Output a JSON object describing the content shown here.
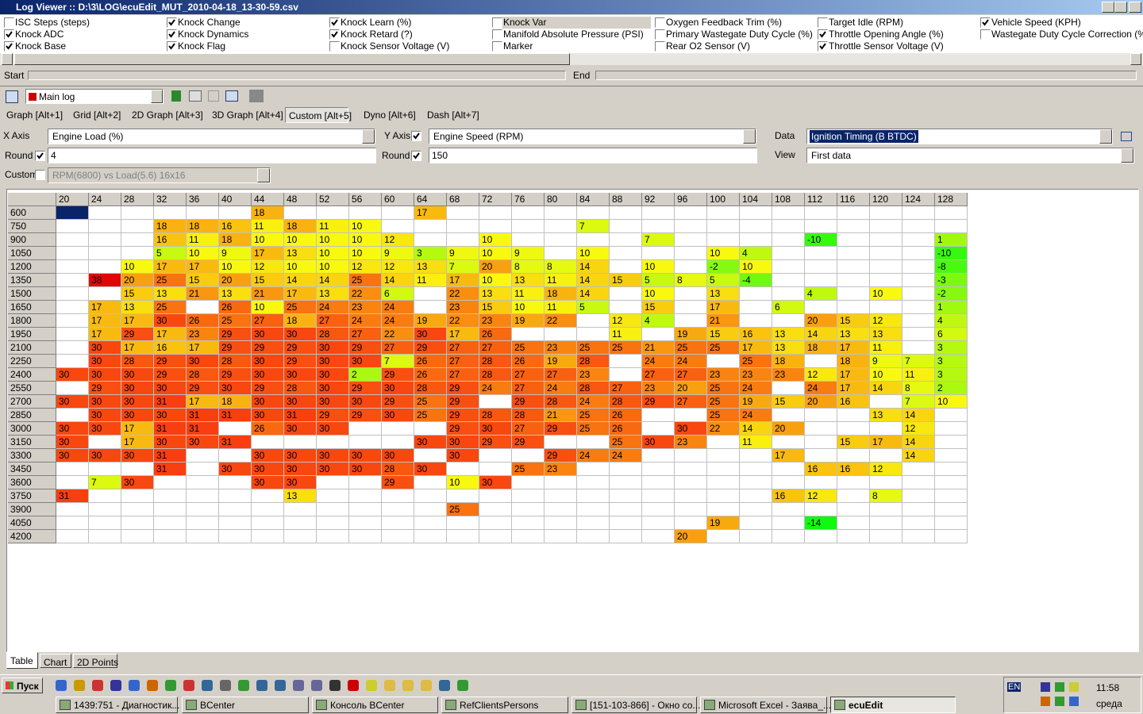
{
  "window": {
    "title": "Log Viewer :: D:\\3\\LOG\\ecuEdit_MUT_2010-04-18_13-30-59.csv"
  },
  "channels": [
    {
      "label": "ISC Steps (steps)",
      "checked": false
    },
    {
      "label": "Knock ADC",
      "checked": true
    },
    {
      "label": "Knock Base",
      "checked": true
    },
    {
      "label": "Knock Change",
      "checked": true
    },
    {
      "label": "Knock Dynamics",
      "checked": true
    },
    {
      "label": "Knock Flag",
      "checked": true
    },
    {
      "label": "Knock Learn (%)",
      "checked": true
    },
    {
      "label": "Knock Retard (?)",
      "checked": true
    },
    {
      "label": "Knock Sensor Voltage (V)",
      "checked": false
    },
    {
      "label": "Knock Var",
      "checked": false
    },
    {
      "label": "Manifold Absolute Pressure (PSI)",
      "checked": false
    },
    {
      "label": "Marker",
      "checked": false
    },
    {
      "label": "Oxygen Feedback Trim (%)",
      "checked": false
    },
    {
      "label": "Primary Wastegate Duty Cycle (%)",
      "checked": false
    },
    {
      "label": "Rear O2 Sensor (V)",
      "checked": false
    },
    {
      "label": "Target Idle (RPM)",
      "checked": false
    },
    {
      "label": "Throttle Opening Angle (%)",
      "checked": true
    },
    {
      "label": "Throttle Sensor Voltage (V)",
      "checked": true
    },
    {
      "label": "Vehicle Speed (KPH)",
      "checked": true
    },
    {
      "label": "Wastegate Duty Cycle Correction (%)",
      "checked": false
    }
  ],
  "range": {
    "start": "Start",
    "end": "End"
  },
  "toolbar": {
    "log": "Main log"
  },
  "tabs": [
    {
      "label": "Graph [Alt+1]",
      "active": false
    },
    {
      "label": "Grid [Alt+2]",
      "active": false
    },
    {
      "label": "2D Graph [Alt+3]",
      "active": false
    },
    {
      "label": "3D Graph [Alt+4]",
      "active": false
    },
    {
      "label": "Custom [Alt+5]",
      "active": true
    },
    {
      "label": "Dyno [Alt+6]",
      "active": false
    },
    {
      "label": "Dash [Alt+7]",
      "active": false
    }
  ],
  "form": {
    "x_label": "X Axis",
    "x_value": "Engine Load (%)",
    "y_label": "Y Axis",
    "y_checked": true,
    "y_value": "Engine Speed (RPM)",
    "data_label": "Data",
    "data_value": "Ignition Timing (B BTDC)",
    "x_round_label": "Round",
    "x_round_checked": true,
    "x_round": "4",
    "y_round_label": "Round",
    "y_round_checked": true,
    "y_round": "150",
    "view_label": "View",
    "view_value": "First data",
    "custom_label": "Custom",
    "custom_checked": false,
    "custom_value": "RPM(6800) vs Load(5.6) 16x16"
  },
  "table": {
    "columns": [
      20,
      24,
      28,
      32,
      36,
      40,
      44,
      48,
      52,
      56,
      60,
      64,
      68,
      72,
      76,
      80,
      84,
      88,
      92,
      96,
      100,
      104,
      108,
      112,
      116,
      120,
      124,
      128
    ],
    "rows": [
      {
        "rpm": 600,
        "cells": [
          null,
          null,
          null,
          null,
          null,
          null,
          18,
          null,
          null,
          null,
          null,
          17,
          null,
          null,
          null,
          null,
          null,
          null,
          null,
          null,
          null,
          null,
          null,
          null,
          null,
          null,
          null,
          null
        ]
      },
      {
        "rpm": 750,
        "cells": [
          null,
          null,
          null,
          18,
          18,
          16,
          11,
          18,
          11,
          10,
          null,
          null,
          null,
          null,
          null,
          null,
          7,
          null,
          null,
          null,
          null,
          null,
          null,
          null,
          null,
          null,
          null,
          null
        ]
      },
      {
        "rpm": 900,
        "cells": [
          null,
          null,
          null,
          16,
          11,
          18,
          10,
          10,
          10,
          10,
          12,
          null,
          null,
          10,
          null,
          null,
          null,
          null,
          7,
          null,
          null,
          null,
          null,
          -10,
          null,
          null,
          null,
          1
        ]
      },
      {
        "rpm": 1050,
        "cells": [
          null,
          null,
          null,
          5,
          10,
          9,
          17,
          13,
          10,
          10,
          9,
          3,
          9,
          10,
          9,
          null,
          10,
          null,
          null,
          null,
          10,
          4,
          null,
          null,
          null,
          null,
          null,
          -10
        ]
      },
      {
        "rpm": 1200,
        "cells": [
          null,
          null,
          10,
          17,
          17,
          10,
          12,
          10,
          10,
          12,
          12,
          13,
          7,
          20,
          8,
          8,
          14,
          null,
          10,
          null,
          -2,
          10,
          null,
          null,
          null,
          null,
          null,
          -8
        ]
      },
      {
        "rpm": 1350,
        "cells": [
          null,
          38,
          20,
          25,
          15,
          20,
          15,
          14,
          14,
          25,
          14,
          11,
          17,
          10,
          13,
          11,
          14,
          15,
          5,
          8,
          5,
          -4,
          null,
          null,
          null,
          null,
          null,
          -3
        ]
      },
      {
        "rpm": 1500,
        "cells": [
          null,
          null,
          15,
          13,
          21,
          13,
          21,
          17,
          13,
          22,
          6,
          null,
          22,
          13,
          11,
          18,
          14,
          null,
          10,
          null,
          13,
          null,
          null,
          4,
          null,
          10,
          null,
          -2
        ]
      },
      {
        "rpm": 1650,
        "cells": [
          null,
          17,
          13,
          25,
          null,
          26,
          10,
          25,
          24,
          23,
          24,
          null,
          23,
          15,
          10,
          11,
          5,
          null,
          15,
          null,
          17,
          null,
          6,
          null,
          null,
          null,
          null,
          1
        ]
      },
      {
        "rpm": 1800,
        "cells": [
          null,
          17,
          17,
          30,
          26,
          25,
          27,
          18,
          27,
          24,
          24,
          19,
          22,
          23,
          19,
          22,
          null,
          12,
          4,
          null,
          21,
          null,
          null,
          20,
          15,
          12,
          null,
          4
        ]
      },
      {
        "rpm": 1950,
        "cells": [
          null,
          17,
          29,
          17,
          23,
          29,
          30,
          30,
          28,
          27,
          22,
          30,
          17,
          26,
          null,
          null,
          null,
          11,
          null,
          19,
          15,
          16,
          13,
          14,
          13,
          13,
          null,
          6
        ]
      },
      {
        "rpm": 2100,
        "cells": [
          null,
          30,
          17,
          16,
          17,
          29,
          29,
          29,
          30,
          29,
          27,
          29,
          27,
          27,
          25,
          23,
          25,
          25,
          21,
          25,
          25,
          17,
          13,
          18,
          17,
          11,
          null,
          3
        ]
      },
      {
        "rpm": 2250,
        "cells": [
          null,
          30,
          28,
          29,
          30,
          28,
          30,
          29,
          30,
          30,
          7,
          26,
          27,
          28,
          26,
          19,
          28,
          null,
          24,
          24,
          null,
          25,
          18,
          null,
          18,
          9,
          7,
          3
        ]
      },
      {
        "rpm": 2400,
        "cells": [
          30,
          30,
          30,
          29,
          28,
          29,
          30,
          30,
          30,
          2,
          29,
          26,
          27,
          28,
          27,
          27,
          23,
          null,
          27,
          27,
          23,
          23,
          23,
          12,
          17,
          10,
          11,
          3
        ]
      },
      {
        "rpm": 2550,
        "cells": [
          null,
          29,
          30,
          30,
          29,
          30,
          29,
          28,
          30,
          29,
          30,
          28,
          29,
          24,
          27,
          24,
          28,
          27,
          23,
          20,
          25,
          24,
          null,
          24,
          17,
          14,
          8,
          2
        ]
      },
      {
        "rpm": 2700,
        "cells": [
          30,
          30,
          30,
          31,
          17,
          18,
          30,
          30,
          30,
          30,
          29,
          25,
          29,
          null,
          29,
          28,
          24,
          28,
          29,
          27,
          25,
          19,
          15,
          20,
          16,
          null,
          7,
          10
        ]
      },
      {
        "rpm": 2850,
        "cells": [
          null,
          30,
          30,
          30,
          31,
          31,
          30,
          31,
          29,
          29,
          30,
          25,
          29,
          28,
          28,
          21,
          25,
          26,
          null,
          null,
          25,
          24,
          null,
          null,
          null,
          13,
          14,
          null
        ]
      },
      {
        "rpm": 3000,
        "cells": [
          30,
          30,
          17,
          31,
          31,
          null,
          26,
          30,
          30,
          null,
          null,
          null,
          29,
          30,
          27,
          29,
          25,
          26,
          null,
          30,
          22,
          14,
          20,
          null,
          null,
          null,
          12,
          null
        ]
      },
      {
        "rpm": 3150,
        "cells": [
          30,
          null,
          17,
          30,
          30,
          31,
          null,
          null,
          null,
          null,
          null,
          30,
          30,
          29,
          29,
          null,
          null,
          25,
          30,
          23,
          null,
          11,
          null,
          null,
          15,
          17,
          14,
          null
        ]
      },
      {
        "rpm": 3300,
        "cells": [
          30,
          30,
          30,
          31,
          null,
          null,
          30,
          30,
          30,
          30,
          30,
          null,
          30,
          null,
          null,
          29,
          24,
          24,
          null,
          null,
          null,
          null,
          17,
          null,
          null,
          null,
          14,
          null
        ]
      },
      {
        "rpm": 3450,
        "cells": [
          null,
          null,
          null,
          31,
          null,
          30,
          30,
          30,
          30,
          30,
          28,
          30,
          null,
          null,
          25,
          23,
          null,
          null,
          null,
          null,
          null,
          null,
          null,
          16,
          16,
          12,
          null,
          null
        ]
      },
      {
        "rpm": 3600,
        "cells": [
          null,
          7,
          30,
          null,
          null,
          null,
          30,
          30,
          null,
          null,
          29,
          null,
          10,
          30,
          null,
          null,
          null,
          null,
          null,
          null,
          null,
          null,
          null,
          null,
          null,
          null,
          null,
          null
        ]
      },
      {
        "rpm": 3750,
        "cells": [
          31,
          null,
          null,
          null,
          null,
          null,
          null,
          13,
          null,
          null,
          null,
          null,
          null,
          null,
          null,
          null,
          null,
          null,
          null,
          null,
          null,
          null,
          16,
          12,
          null,
          8,
          null,
          null
        ]
      },
      {
        "rpm": 3900,
        "cells": [
          null,
          null,
          null,
          null,
          null,
          null,
          null,
          null,
          null,
          null,
          null,
          null,
          25,
          null,
          null,
          null,
          null,
          null,
          null,
          null,
          null,
          null,
          null,
          null,
          null,
          null,
          null,
          null
        ]
      },
      {
        "rpm": 4050,
        "cells": [
          null,
          null,
          null,
          null,
          null,
          null,
          null,
          null,
          null,
          null,
          null,
          null,
          null,
          null,
          null,
          null,
          null,
          null,
          null,
          null,
          19,
          null,
          null,
          -14,
          null,
          null,
          null,
          null
        ]
      },
      {
        "rpm": 4200,
        "cells": [
          null,
          null,
          null,
          null,
          null,
          null,
          null,
          null,
          null,
          null,
          null,
          null,
          null,
          null,
          null,
          null,
          null,
          null,
          null,
          20,
          null,
          null,
          null,
          null,
          null,
          null,
          null,
          null
        ]
      }
    ]
  },
  "bottom_tabs": [
    {
      "label": "Table",
      "active": true
    },
    {
      "label": "Chart",
      "active": false
    },
    {
      "label": "2D Points",
      "active": false
    }
  ],
  "taskbar": {
    "start": "Пуск",
    "tasks": [
      {
        "label": "1439:751 - Диагностик...",
        "active": false
      },
      {
        "label": "BCenter",
        "active": false
      },
      {
        "label": "Консоль BCenter",
        "active": false
      },
      {
        "label": "RefClientsPersons",
        "active": false
      },
      {
        "label": "[151-103-866] - Окно со...",
        "active": false
      },
      {
        "label": "Microsoft Excel - Заява_...",
        "active": false
      },
      {
        "label": "ecuEdit",
        "active": true
      }
    ],
    "lang": "EN",
    "time": "11:58",
    "day": "среда"
  }
}
